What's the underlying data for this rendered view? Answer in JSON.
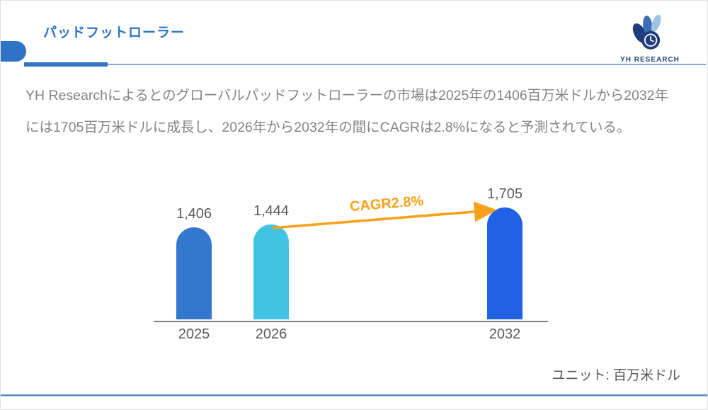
{
  "header": {
    "title": "パッドフットローラー",
    "logo_text": "YH RESEARCH"
  },
  "summary": {
    "line1": "YH Researchによるとのグローバルパッドフットローラーの市場は2025年の1406百万米ドルから2032年",
    "line2": "には1705百万米ドルに成長し、2026年から2032年の間にCAGRは2.8%になると予測されている。"
  },
  "chart_data": {
    "type": "bar",
    "title": "",
    "categories": [
      "2025",
      "2026",
      "2032"
    ],
    "values": [
      1406,
      1444,
      1705
    ],
    "value_labels": [
      "1,406",
      "1,444",
      "1,705"
    ],
    "bar_colors": [
      "#3377ce",
      "#41c4e4",
      "#2161e6"
    ],
    "annotation": "CAGR2.8%",
    "annotation_color": "#f9a11b",
    "unit_note": "ユニット: 百万米ドル",
    "xlabel": "",
    "ylabel": "",
    "ylim": [
      0,
      1800
    ],
    "grid": false,
    "legend": false
  },
  "colors": {
    "accent_blue": "#2e74c4",
    "light_blue_rule": "#7fa8d8",
    "logo_navy": "#1f3e7c",
    "text_gray": "#595959",
    "paragraph_gray": "#848484",
    "axis_gray": "#808080",
    "footer_blue": "#5088c6"
  }
}
